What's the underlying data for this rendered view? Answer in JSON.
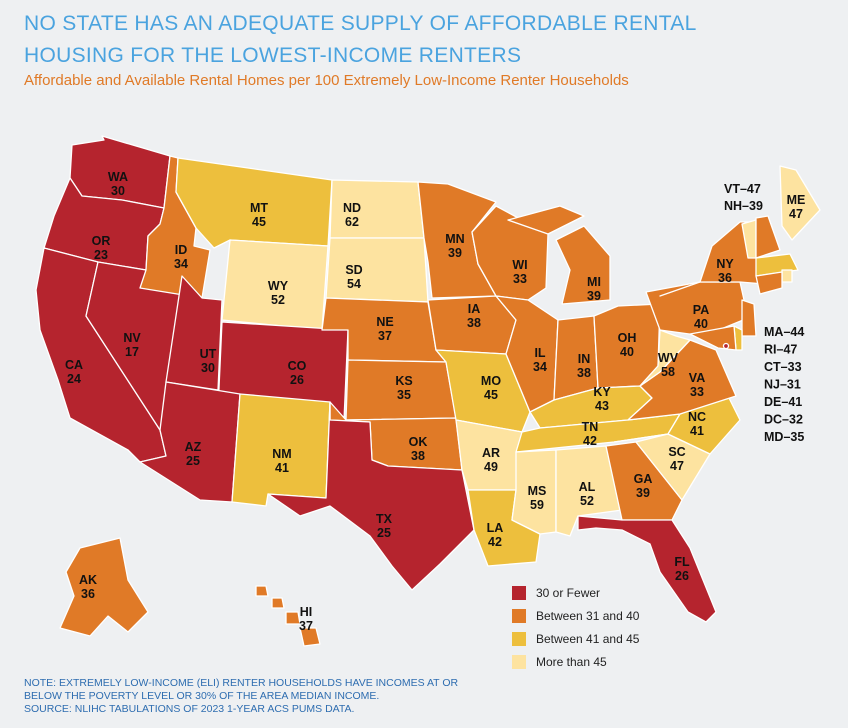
{
  "title_line1": "NO STATE HAS AN ADEQUATE SUPPLY OF AFFORDABLE RENTAL",
  "title_line2": "HOUSING FOR THE LOWEST-INCOME RENTERS",
  "subtitle": "Affordable and Available Rental Homes per 100 Extremely Low-Income Renter Households",
  "colors": {
    "low": "#b5242e",
    "mid": "#e07a27",
    "high": "#edbf3d",
    "top": "#fde3a0",
    "border": "#ffffff"
  },
  "legend": [
    {
      "label": "30 or Fewer",
      "color": "#b5242e"
    },
    {
      "label": "Between 31 and 40",
      "color": "#e07a27"
    },
    {
      "label": "Between 41 and 45",
      "color": "#edbf3d"
    },
    {
      "label": "More than 45",
      "color": "#fde3a0"
    }
  ],
  "states": {
    "WA": 30,
    "OR": 23,
    "CA": 24,
    "NV": 17,
    "ID": 34,
    "MT": 45,
    "WY": 52,
    "UT": 30,
    "CO": 26,
    "AZ": 25,
    "NM": 41,
    "ND": 62,
    "SD": 54,
    "NE": 37,
    "KS": 35,
    "OK": 38,
    "TX": 25,
    "MN": 39,
    "IA": 38,
    "MO": 45,
    "AR": 49,
    "LA": 42,
    "WI": 33,
    "IL": 34,
    "MI": 39,
    "IN": 38,
    "OH": 40,
    "KY": 43,
    "TN": 42,
    "MS": 59,
    "AL": 52,
    "GA": 39,
    "FL": 26,
    "SC": 47,
    "NC": 41,
    "VA": 33,
    "WV": 58,
    "PA": 40,
    "NY": 36,
    "ME": 47,
    "AK": 36,
    "HI": 37
  },
  "side_labels": {
    "ne_top": [
      "VT–47",
      "NH–39"
    ],
    "ne_right": [
      "MA–44",
      "RI–47",
      "CT–33",
      "NJ–31",
      "DE–41",
      "DC–32",
      "MD–35"
    ]
  },
  "note": [
    "NOTE: EXTREMELY LOW-INCOME (ELI) RENTER HOUSEHOLDS HAVE INCOMES AT OR",
    "BELOW THE POVERTY LEVEL OR 30% OF THE AREA MEDIAN INCOME.",
    "SOURCE: NLIHC TABULATIONS OF 2023 1-YEAR ACS PUMS DATA."
  ]
}
